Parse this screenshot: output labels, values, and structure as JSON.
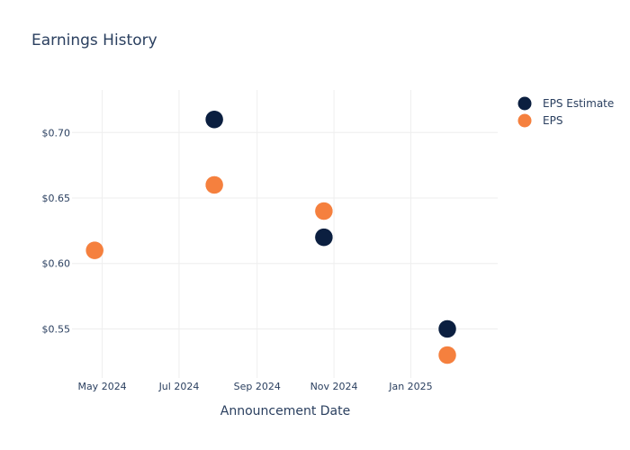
{
  "chart_data": {
    "type": "scatter",
    "title": "Earnings History",
    "xlabel": "Announcement Date",
    "ylabel": "",
    "x_ticks": [
      {
        "date": "2024-05-01",
        "label": "May 2024"
      },
      {
        "date": "2024-07-01",
        "label": "Jul 2024"
      },
      {
        "date": "2024-09-01",
        "label": "Sep 2024"
      },
      {
        "date": "2024-11-01",
        "label": "Nov 2024"
      },
      {
        "date": "2025-01-01",
        "label": "Jan 2025"
      }
    ],
    "y_ticks": [
      {
        "value": 0.55,
        "label": "$0.55"
      },
      {
        "value": 0.6,
        "label": "$0.60"
      },
      {
        "value": 0.65,
        "label": "$0.65"
      },
      {
        "value": 0.7,
        "label": "$0.70"
      }
    ],
    "xlim": [
      "2024-04-07",
      "2025-03-11"
    ],
    "ylim": [
      0.5125,
      0.7325
    ],
    "grid": true,
    "legend_position": "top-right",
    "x": [
      "2024-04-25",
      "2024-07-29",
      "2024-10-24",
      "2025-01-30"
    ],
    "series": [
      {
        "name": "EPS Estimate",
        "color": "#0b1f40",
        "values": [
          0.61,
          0.71,
          0.62,
          0.55
        ]
      },
      {
        "name": "EPS",
        "color": "#f5803e",
        "values": [
          0.61,
          0.66,
          0.64,
          0.53
        ]
      }
    ]
  }
}
